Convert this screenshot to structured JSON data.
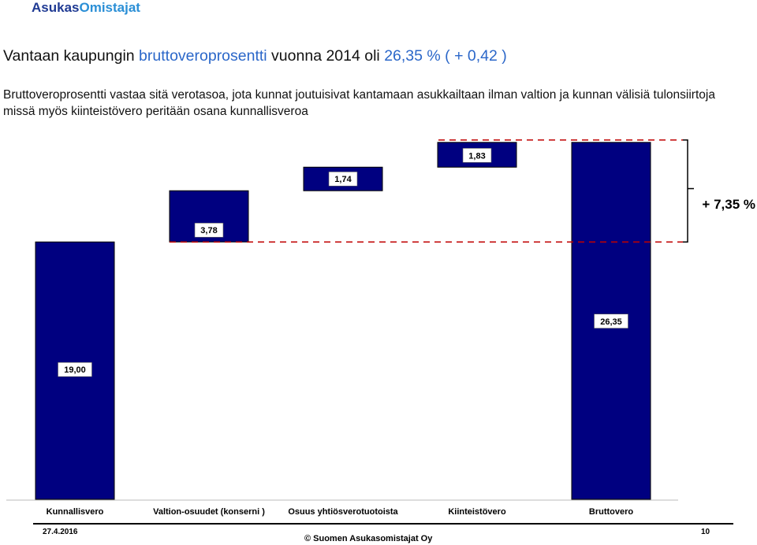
{
  "header": {
    "logo_part1": "Asukas",
    "logo_part2": "Omistajat",
    "title_part1": "Vantaan kaupungin ",
    "title_part2": "bruttoveroprosentti",
    "title_part3": "  vuonna 2014 oli  ",
    "title_part4": "26,35 % ( + 0,42 )",
    "subtitle": "Bruttoveroprosentti vastaa sitä verotasoa, jota kunnat joutuisivat kantamaan asukkailtaan ilman valtion ja kunnan välisiä tulonsiirtoja missä myös kiinteistövero peritään osana kunnallisveroa"
  },
  "chart_data": {
    "type": "bar",
    "subtype": "waterfall",
    "categories": [
      "Kunnallisvero",
      "Valtion-osuudet (konserni )",
      "Osuus yhtiösverotuotoista",
      "Kiinteistövero",
      "Bruttovero"
    ],
    "values": [
      19.0,
      3.78,
      1.74,
      1.83,
      26.35
    ],
    "value_labels": [
      "19,00",
      "3,78",
      "1,74",
      "1,83",
      "26,35"
    ],
    "bar_color": "#000080",
    "annotation": "+ 7,35 %",
    "grid": false,
    "legend": "none"
  },
  "footer": {
    "date": "27.4.2016",
    "page": "10",
    "copyright": "©  Suomen Asukasomistajat Oy"
  }
}
